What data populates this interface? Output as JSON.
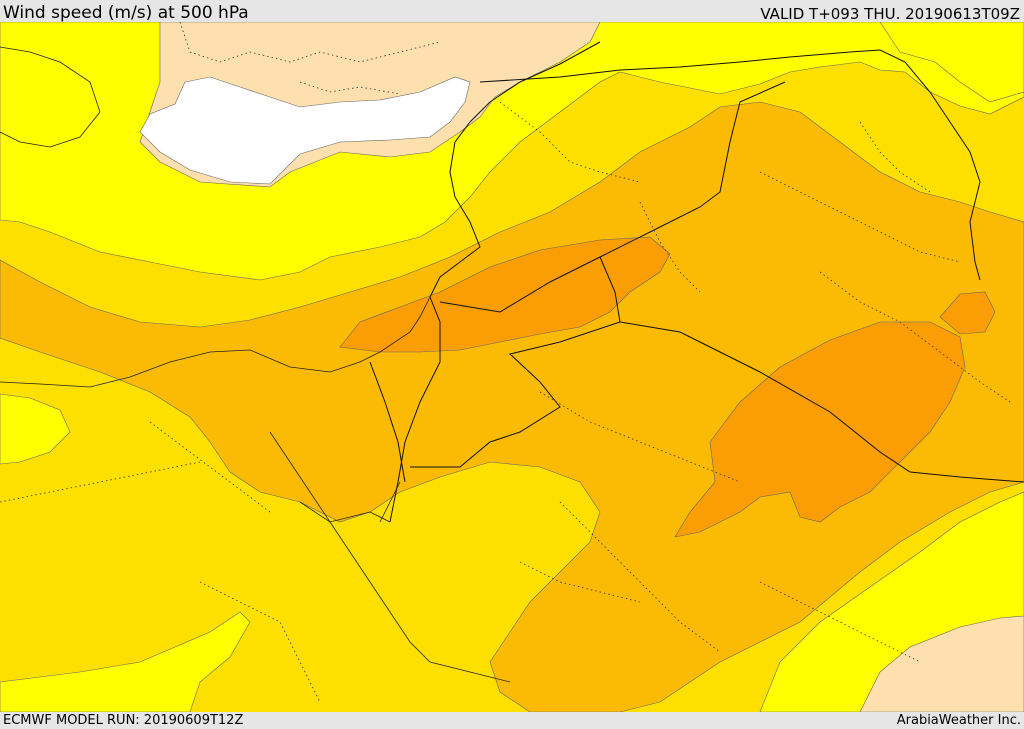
{
  "header": {
    "title": "Wind speed (m/s) at 500 hPa",
    "valid_time": "VALID T+093 THU. 20190613T09Z"
  },
  "footer": {
    "model_run": "ECMWF MODEL RUN: 20190609T12Z",
    "credit": "ArabiaWeather Inc."
  },
  "map": {
    "variable": "wind speed",
    "level": "500 hPa",
    "units": "m/s",
    "shading_colors": {
      "land_cutout": "#ffffff",
      "band_1": "#fde0ad",
      "band_2": "#ffff00",
      "band_3": "#fde000",
      "band_4": "#fbbb05",
      "band_5": "#fb9d04",
      "band_6": "#f78c05"
    },
    "overlays": [
      "country-borders",
      "province-borders",
      "coastlines"
    ]
  }
}
